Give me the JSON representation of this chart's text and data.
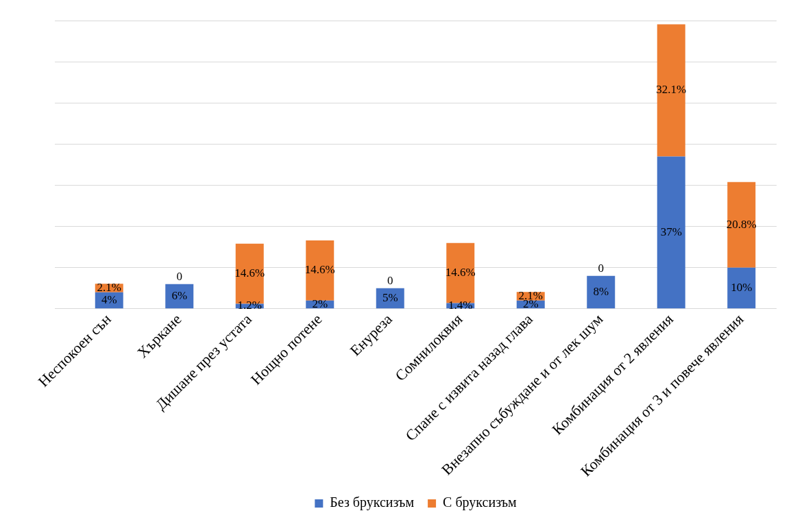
{
  "chart_data": {
    "type": "bar",
    "stacked": true,
    "grid": "y",
    "legend": "bottom",
    "tick_labels": "x",
    "categories": [
      "Неспокоен сън",
      "Хъркане",
      "Дишане през устата",
      "Нощно потене",
      "Енуреза",
      "Сомнилоквия",
      "Спане с извита назад глава",
      "Внезапно събуждане и от лек шум",
      "Комбинация от 2 явления",
      "Комбинация от 3 и повече явления"
    ],
    "series": [
      {
        "name": "Без бруксизъм",
        "color": "#4472c4",
        "values": [
          4,
          6,
          1.2,
          2,
          5,
          1.4,
          2,
          8,
          37,
          10
        ],
        "value_labels": [
          "4%",
          "6%",
          "1.2%",
          "2%",
          "5%",
          "1.4%",
          "2%",
          "8%",
          "37%",
          "10%"
        ]
      },
      {
        "name": "С бруксизъм",
        "color": "#ed7d31",
        "values": [
          2.1,
          0,
          14.6,
          14.6,
          0,
          14.6,
          2.1,
          0,
          32.1,
          20.8
        ],
        "value_labels": [
          "2.1%",
          "0",
          "14.6%",
          "14.6%",
          "0",
          "14.6%",
          "2.1%",
          "0",
          "32.1%",
          "20.8%"
        ]
      }
    ]
  }
}
